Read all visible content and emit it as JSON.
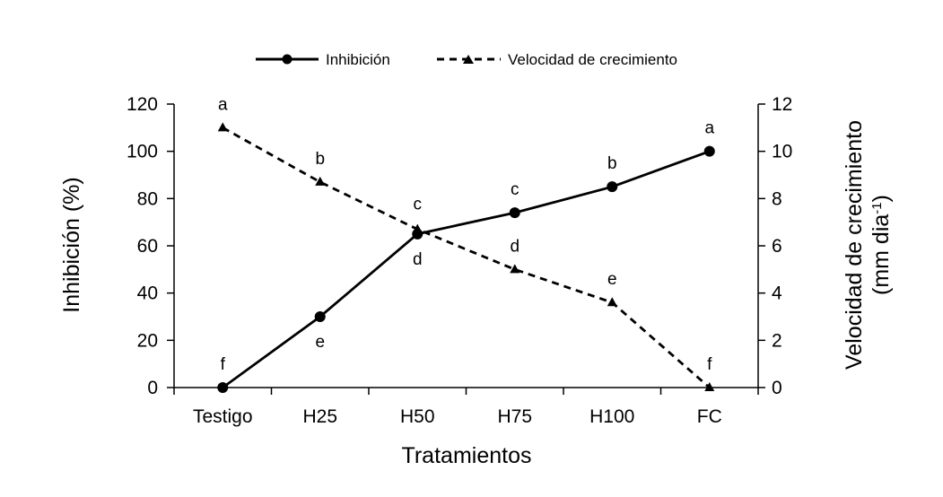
{
  "chart_data": {
    "type": "line",
    "categories": [
      "Testigo",
      "H25",
      "H50",
      "H75",
      "H100",
      "FC"
    ],
    "xlabel": "Tratamientos",
    "ylabel_left": "Inhibición (%)",
    "ylabel_right_line1": "Velocidad de crecimiento",
    "ylabel_right_line2_main": "(mm dia",
    "ylabel_right_line2_sup": "-1",
    "ylabel_right_line2_end": ")",
    "ylim_left": [
      0,
      120
    ],
    "ylim_right": [
      0,
      12
    ],
    "yticks_left": [
      0,
      20,
      40,
      60,
      80,
      100,
      120
    ],
    "yticks_right": [
      0,
      2,
      4,
      6,
      8,
      10,
      12
    ],
    "grid": false,
    "legend_position": "top-center",
    "series": [
      {
        "name": "Inhibición",
        "axis": "left",
        "marker": "circle",
        "line_style": "solid",
        "values": [
          0,
          30,
          65,
          74,
          85,
          100
        ],
        "letters": [
          "f",
          "e",
          "d",
          "c",
          "b",
          "a"
        ]
      },
      {
        "name": "Velocidad de crecimiento",
        "axis": "right",
        "marker": "triangle",
        "line_style": "dashed",
        "values": [
          11.0,
          8.7,
          6.7,
          5.0,
          3.6,
          0
        ],
        "letters": [
          "a",
          "b",
          "c",
          "d",
          "e",
          "f"
        ]
      }
    ]
  }
}
